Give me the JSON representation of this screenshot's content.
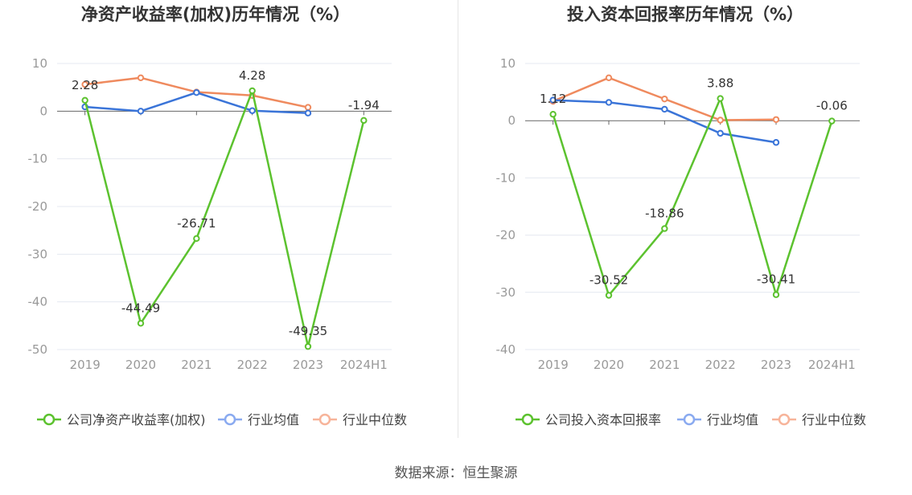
{
  "source_prefix": "数据来源：",
  "source_name": "恒生聚源",
  "colors": {
    "company": "#5cc22f",
    "avg": "#3a74d8",
    "median": "#ef8a5e",
    "legend_avg": "#8aaaf0",
    "legend_median": "#f7b49a"
  },
  "chart_data": [
    {
      "type": "line",
      "title": "净资产收益率(加权)历年情况（%）",
      "categories": [
        "2019",
        "2020",
        "2021",
        "2022",
        "2023",
        "2024H1"
      ],
      "ylim": [
        -50,
        10
      ],
      "yticks": [
        10,
        0,
        -10,
        -20,
        -30,
        -40,
        -50
      ],
      "legend": "bottom",
      "series": [
        {
          "name": "公司净资产收益率(加权)",
          "values": [
            2.28,
            -44.49,
            -26.71,
            4.28,
            -49.35,
            -1.94
          ]
        },
        {
          "name": "行业均值",
          "values": [
            0.9,
            0.0,
            3.9,
            0.1,
            -0.4,
            null
          ]
        },
        {
          "name": "行业中位数",
          "values": [
            5.6,
            7.0,
            4.0,
            3.3,
            0.8,
            null
          ]
        }
      ],
      "labels": [
        "2.28",
        "-44.49",
        "-26.71",
        "4.28",
        "-49.35",
        "-1.94"
      ]
    },
    {
      "type": "line",
      "title": "投入资本回报率历年情况（%）",
      "categories": [
        "2019",
        "2020",
        "2021",
        "2022",
        "2023",
        "2024H1"
      ],
      "ylim": [
        -40,
        10
      ],
      "yticks": [
        10,
        0,
        -10,
        -20,
        -30,
        -40
      ],
      "legend": "bottom",
      "series": [
        {
          "name": "公司投入资本回报率",
          "values": [
            1.12,
            -30.52,
            -18.86,
            3.88,
            -30.41,
            -0.06
          ]
        },
        {
          "name": "行业均值",
          "values": [
            3.6,
            3.2,
            2.0,
            -2.2,
            -3.8,
            null
          ]
        },
        {
          "name": "行业中位数",
          "values": [
            3.4,
            7.5,
            3.8,
            0.1,
            0.2,
            null
          ]
        }
      ],
      "labels": [
        "1.12",
        "-30.52",
        "-18.86",
        "3.88",
        "-30.41",
        "-0.06"
      ]
    }
  ]
}
